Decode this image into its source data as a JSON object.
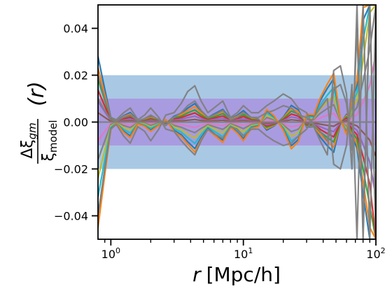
{
  "chart_data": {
    "type": "line",
    "title": "",
    "xlabel": {
      "var": "r",
      "unit": "[Mpc/h]"
    },
    "ylabel": {
      "numerator": "Δξ",
      "numerator_sub": "gm",
      "denominator": "ξ",
      "denominator_sub": "model",
      "suffix": "(r)"
    },
    "x_scale": "log",
    "xlim": [
      0.8,
      100
    ],
    "ylim": [
      -0.05,
      0.05
    ],
    "x_ticks": [
      {
        "value": 1,
        "base": "10",
        "exp": "0"
      },
      {
        "value": 10,
        "base": "10",
        "exp": "1"
      },
      {
        "value": 100,
        "base": "10",
        "exp": "2"
      }
    ],
    "y_ticks": [
      {
        "value": -0.04,
        "label": "−0.04"
      },
      {
        "value": -0.02,
        "label": "−0.02"
      },
      {
        "value": 0.0,
        "label": "0.00"
      },
      {
        "value": 0.02,
        "label": "0.02"
      },
      {
        "value": 0.04,
        "label": "0.04"
      }
    ],
    "bands": [
      {
        "y0": -0.02,
        "y1": 0.02,
        "color": "#a9c8e4"
      },
      {
        "y0": -0.01,
        "y1": 0.01,
        "color": "#a99be0"
      }
    ],
    "grid": false,
    "legend": "none",
    "series_colors": [
      "#1f77b4",
      "#ff7f0e",
      "#2ca02c",
      "#d62728",
      "#9467bd",
      "#8c564b",
      "#e377c2",
      "#7f7f7f",
      "#bcbd22",
      "#17becf"
    ],
    "x": [
      0.8,
      0.9,
      1.0,
      1.1,
      1.25,
      1.4,
      1.6,
      1.8,
      2.0,
      2.3,
      2.6,
      3.0,
      3.4,
      3.8,
      4.3,
      4.8,
      5.4,
      6.0,
      7.0,
      8.0,
      9.0,
      10.0,
      11.5,
      13.0,
      15.0,
      17.0,
      20.0,
      23.0,
      26.0,
      30.0,
      34.0,
      38.0,
      43.0,
      48.0,
      54.0,
      60.0,
      66.0,
      72.0,
      80.0,
      90.0,
      100.0
    ],
    "series": [
      {
        "values": [
          0.028,
          0.014,
          0.002,
          0.0003,
          0.0027,
          0.0041,
          0.0005,
          0.0011,
          0.0024,
          0.0009,
          -0.0007,
          0.0025,
          0.0038,
          0.0059,
          0.0079,
          0.0047,
          0.0019,
          0.0034,
          0.0054,
          0.0014,
          0.0029,
          0.0049,
          0.0017,
          0.0012,
          -0.0034,
          -0.0017,
          0.0021,
          0.0071,
          0.0052,
          -0.0021,
          -0.0019,
          -0.0064,
          -0.0101,
          -0.0129,
          -0.0008,
          0.0033,
          -0.0061,
          -0.0111,
          -0.0305,
          -0.05,
          -0.05
        ]
      },
      {
        "values": [
          0.0232,
          0.0116,
          0.0017,
          0.0002,
          0.0023,
          0.0034,
          0.0004,
          0.0009,
          0.002,
          0.0008,
          -0.0006,
          0.0021,
          0.0032,
          0.0049,
          0.0066,
          0.0039,
          0.0016,
          0.0028,
          0.0045,
          0.0012,
          0.0024,
          0.0041,
          0.0014,
          0.001,
          -0.0028,
          -0.0014,
          0.0017,
          0.0059,
          0.0043,
          -0.0017,
          -0.0016,
          -0.0053,
          -0.0083,
          -0.0107,
          -0.0007,
          0.0028,
          -0.005,
          -0.0092,
          -0.0253,
          -0.045,
          -0.05
        ]
      },
      {
        "values": [
          0.0184,
          0.0092,
          0.0013,
          0.0002,
          0.0018,
          0.0027,
          0.0003,
          0.0007,
          0.0016,
          0.0006,
          -0.0005,
          0.0017,
          0.0025,
          0.0039,
          0.0052,
          0.0031,
          0.0013,
          0.0022,
          0.0036,
          0.0009,
          0.0019,
          0.0032,
          0.0011,
          0.0008,
          -0.0022,
          -0.0011,
          0.0014,
          0.0047,
          0.0034,
          -0.0014,
          -0.0013,
          -0.0042,
          -0.0066,
          -0.0085,
          -0.0005,
          0.0022,
          -0.004,
          -0.0073,
          -0.0201,
          -0.0358,
          -0.05
        ]
      },
      {
        "values": [
          0.0136,
          0.0068,
          0.001,
          0.0001,
          0.0013,
          0.002,
          0.0002,
          0.0005,
          0.0012,
          0.0004,
          -0.0003,
          0.0012,
          0.0019,
          0.0029,
          0.0039,
          0.0023,
          0.0009,
          0.0017,
          0.0026,
          0.0007,
          0.0014,
          0.0024,
          0.0008,
          0.0006,
          -0.0016,
          -0.0008,
          0.001,
          0.0034,
          0.0025,
          -0.001,
          -0.0009,
          -0.0031,
          -0.0049,
          -0.0063,
          -0.0004,
          0.0016,
          -0.003,
          -0.0054,
          -0.0148,
          -0.0265,
          -0.05
        ]
      },
      {
        "values": [
          0.0088,
          0.0044,
          0.0006,
          0.0001,
          0.0008,
          0.0013,
          0.0002,
          0.0003,
          0.0008,
          0.0003,
          -0.0002,
          0.0008,
          0.0012,
          0.0019,
          0.0025,
          0.0015,
          0.0006,
          0.0011,
          0.0017,
          0.0004,
          0.0009,
          0.0015,
          0.0005,
          0.0004,
          -0.0011,
          -0.0005,
          0.0007,
          0.0022,
          0.0016,
          -0.0007,
          -0.0006,
          -0.002,
          -0.0032,
          -0.0041,
          -0.0003,
          0.001,
          -0.0019,
          -0.0035,
          -0.0096,
          -0.0171,
          -0.032
        ]
      },
      {
        "values": [
          0.004,
          0.002,
          0.0003,
          0.0,
          0.0004,
          0.0006,
          0.0001,
          0.0002,
          0.0003,
          0.0001,
          -0.0001,
          0.0004,
          0.0005,
          0.0008,
          0.0011,
          0.0007,
          0.0003,
          0.0005,
          0.0008,
          0.0002,
          0.0004,
          0.0007,
          0.0002,
          0.0002,
          -0.0005,
          -0.0002,
          0.0003,
          0.001,
          0.0007,
          -0.0003,
          -0.0003,
          -0.0009,
          -0.0014,
          -0.0018,
          -0.0001,
          0.0005,
          -0.0009,
          -0.0016,
          -0.0044,
          -0.0078,
          -0.0147
        ]
      },
      {
        "values": [
          -0.008,
          -0.004,
          -0.0006,
          -0.0001,
          -0.0008,
          -0.0012,
          -0.0001,
          -0.0003,
          -0.0007,
          -0.0003,
          0.0002,
          -0.0007,
          -0.0011,
          -0.0017,
          -0.0023,
          -0.0013,
          -0.0005,
          -0.001,
          -0.0015,
          -0.0004,
          -0.0008,
          -0.0014,
          -0.0005,
          -0.0003,
          0.001,
          0.0005,
          -0.0006,
          -0.002,
          -0.0015,
          0.0006,
          0.0005,
          0.0018,
          0.0029,
          0.0037,
          0.0002,
          -0.0009,
          0.0017,
          0.0032,
          0.0087,
          0.0156,
          0.0293
        ]
      },
      {
        "values": [
          -0.016,
          -0.008,
          -0.0011,
          -0.0002,
          -0.0015,
          -0.0023,
          -0.0003,
          -0.0006,
          -0.0014,
          -0.0005,
          0.0004,
          -0.0014,
          -0.0022,
          -0.0034,
          -0.0045,
          -0.0027,
          -0.0011,
          -0.0019,
          -0.0031,
          -0.0008,
          -0.0017,
          -0.0028,
          -0.001,
          -0.0007,
          0.0019,
          0.001,
          -0.0012,
          -0.0041,
          -0.003,
          0.0012,
          0.0011,
          0.0037,
          0.0058,
          0.0074,
          0.0005,
          -0.0019,
          0.0035,
          0.0063,
          0.0174,
          0.0311,
          0.05
        ]
      },
      {
        "values": [
          -0.024,
          -0.012,
          -0.0017,
          -0.0003,
          -0.0023,
          -0.0035,
          -0.0004,
          -0.0009,
          -0.0021,
          -0.0008,
          0.0006,
          -0.0021,
          -0.0033,
          -0.0051,
          -0.0068,
          -0.004,
          -0.0016,
          -0.0029,
          -0.0046,
          -0.0012,
          -0.0025,
          -0.0042,
          -0.0015,
          -0.001,
          0.0029,
          0.0015,
          -0.0018,
          -0.0061,
          -0.0045,
          0.0018,
          0.0016,
          0.0055,
          0.0087,
          0.0111,
          0.0007,
          -0.0028,
          0.0052,
          0.0095,
          0.0261,
          0.0467,
          0.05
        ]
      },
      {
        "values": [
          -0.032,
          -0.016,
          -0.0023,
          -0.0004,
          -0.0031,
          -0.0047,
          -0.0006,
          -0.0013,
          -0.0027,
          -0.001,
          0.0008,
          -0.0029,
          -0.0043,
          -0.0067,
          -0.0091,
          -0.0054,
          -0.0022,
          -0.0039,
          -0.0062,
          -0.0016,
          -0.0033,
          -0.0056,
          -0.0019,
          -0.0014,
          0.0039,
          0.0019,
          -0.0024,
          -0.0081,
          -0.006,
          0.0024,
          0.0022,
          0.0073,
          0.0115,
          0.0148,
          0.0009,
          -0.0038,
          0.007,
          0.0127,
          0.0348,
          0.05,
          0.05
        ]
      },
      {
        "values": [
          -0.04,
          -0.02,
          -0.0029,
          -0.0005,
          -0.0039,
          -0.0059,
          -0.0007,
          -0.0016,
          -0.0034,
          -0.0013,
          0.001,
          -0.0036,
          -0.0054,
          -0.0084,
          -0.0113,
          -0.0067,
          -0.0027,
          -0.0049,
          -0.0077,
          -0.002,
          -0.0042,
          -0.0071,
          -0.0024,
          -0.0017,
          0.0048,
          0.0024,
          -0.003,
          -0.0101,
          -0.0075,
          0.003,
          0.0027,
          0.0092,
          0.0144,
          0.0185,
          0.0011,
          -0.0047,
          0.0087,
          0.0159,
          0.0435,
          0.05,
          0.05
        ]
      },
      {
        "values": [
          -0.045,
          -0.0225,
          -0.0032,
          -0.0005,
          -0.0044,
          -0.0066,
          -0.0008,
          -0.0018,
          -0.0039,
          -0.0014,
          0.0011,
          -0.0041,
          -0.0061,
          -0.0094,
          -0.0128,
          -0.0075,
          -0.0031,
          -0.0055,
          -0.0087,
          -0.0022,
          -0.0047,
          -0.0079,
          -0.0027,
          -0.0019,
          0.0054,
          0.0027,
          -0.0034,
          -0.0114,
          -0.0084,
          0.0034,
          0.0031,
          0.0103,
          0.0162,
          0.0208,
          0.0013,
          -0.0053,
          0.0098,
          0.0179,
          0.0489,
          0.05,
          0.05
        ]
      }
    ],
    "outlier_series": [
      {
        "color": "#7f7f7f",
        "values": [
          -0.04,
          -0.02,
          -0.003,
          -0.001,
          -0.006,
          -0.009,
          -0.002,
          -0.004,
          -0.008,
          -0.003,
          0.003,
          0.004,
          0.008,
          0.013,
          0.0155,
          0.009,
          0.004,
          0.006,
          0.009,
          0.002,
          0.004,
          0.007,
          0.004,
          0.004,
          0.007,
          0.009,
          0.012,
          0.01,
          0.006,
          0.004,
          -0.002,
          -0.008,
          -0.014,
          0.022,
          0.024,
          0.012,
          -0.02,
          0.05,
          -0.05,
          0.05,
          -0.05
        ]
      },
      {
        "color": "#7f7f7f",
        "values": [
          0.02,
          0.01,
          0.002,
          0.001,
          0.004,
          0.006,
          0.001,
          0.003,
          0.006,
          0.002,
          -0.003,
          -0.004,
          -0.008,
          -0.011,
          -0.014,
          -0.008,
          -0.003,
          -0.005,
          -0.007,
          -0.002,
          -0.003,
          -0.006,
          -0.003,
          -0.003,
          -0.006,
          -0.008,
          -0.01,
          -0.009,
          -0.006,
          -0.003,
          0.002,
          0.006,
          0.01,
          -0.018,
          -0.02,
          -0.01,
          0.016,
          -0.05,
          0.05,
          -0.05,
          0.05
        ]
      },
      {
        "color": "#7f7f7f",
        "values": [
          0.01,
          0.005,
          0.001,
          0.0005,
          0.002,
          0.003,
          0.0005,
          0.0015,
          0.003,
          0.001,
          -0.0015,
          0.002,
          0.004,
          0.007,
          0.009,
          0.005,
          0.002,
          0.003,
          0.005,
          0.001,
          0.002,
          0.004,
          0.002,
          0.002,
          0.004,
          0.005,
          0.007,
          0.006,
          0.003,
          0.002,
          -0.001,
          -0.004,
          -0.008,
          0.014,
          0.016,
          0.008,
          -0.012,
          0.04,
          -0.045,
          0.05,
          -0.05
        ]
      },
      {
        "color": "#7f7f7f",
        "values": [
          0.0,
          0.0,
          0.0,
          0.0,
          0.0,
          0.0,
          0.0,
          0.0,
          0.0,
          0.0,
          0.0,
          0.0,
          0.0,
          0.0,
          0.0,
          0.0,
          0.0,
          0.0,
          0.0,
          0.0,
          0.0,
          0.0,
          0.0,
          0.0,
          0.0,
          0.0,
          0.0,
          0.0,
          0.0,
          0.0,
          0.0,
          0.0,
          0.0,
          0.0,
          0.0,
          0.0,
          0.0,
          0.0,
          0.0,
          0.0,
          0.0
        ]
      }
    ]
  }
}
